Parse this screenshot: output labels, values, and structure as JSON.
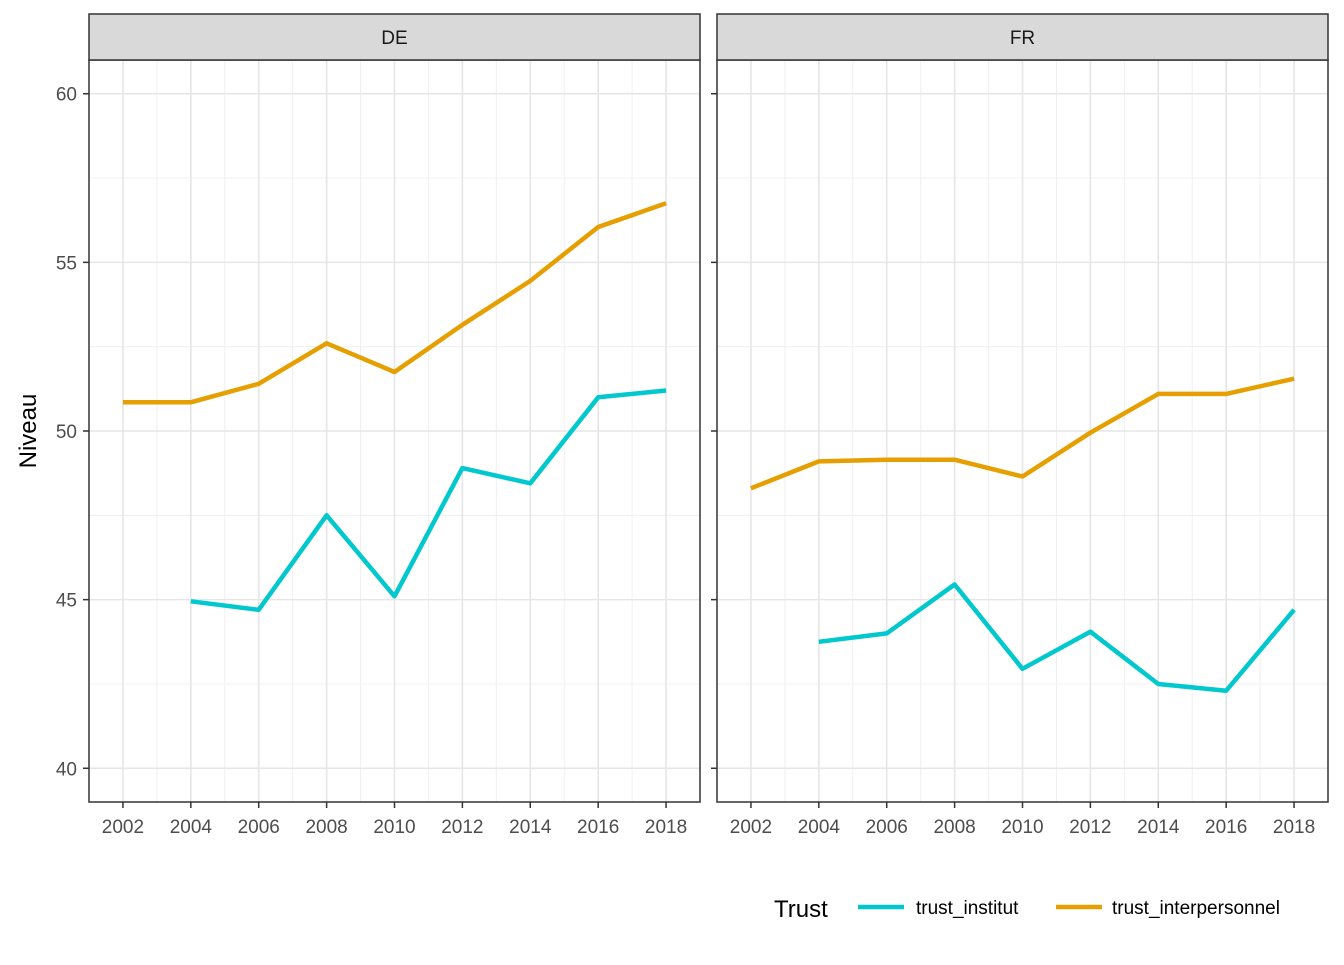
{
  "chart_data": {
    "type": "line",
    "ylabel": "Niveau",
    "ylim": [
      39,
      61
    ],
    "yticks": [
      40,
      45,
      50,
      55,
      60
    ],
    "xlim": [
      2001,
      2019
    ],
    "xticks": [
      2002,
      2004,
      2006,
      2008,
      2010,
      2012,
      2014,
      2016,
      2018
    ],
    "grid": true,
    "legend": {
      "title": "Trust",
      "position": "bottom-right",
      "entries": [
        "trust_institut",
        "trust_interpersonnel"
      ]
    },
    "colors": {
      "trust_institut": "#00c8cd",
      "trust_interpersonnel": "#e69f00"
    },
    "panels": [
      {
        "label": "DE",
        "series": [
          {
            "name": "trust_institut",
            "x": [
              2004,
              2006,
              2008,
              2010,
              2012,
              2014,
              2016,
              2018
            ],
            "y": [
              44.95,
              44.7,
              47.5,
              45.1,
              48.9,
              48.45,
              51.0,
              51.2
            ]
          },
          {
            "name": "trust_interpersonnel",
            "x": [
              2002,
              2004,
              2006,
              2008,
              2010,
              2012,
              2014,
              2016,
              2018
            ],
            "y": [
              50.85,
              50.85,
              51.4,
              52.6,
              51.75,
              53.15,
              54.45,
              56.05,
              56.75
            ]
          }
        ]
      },
      {
        "label": "FR",
        "series": [
          {
            "name": "trust_institut",
            "x": [
              2004,
              2006,
              2008,
              2010,
              2012,
              2014,
              2016,
              2018
            ],
            "y": [
              43.75,
              44.0,
              45.45,
              42.95,
              44.05,
              42.5,
              42.3,
              44.7
            ]
          },
          {
            "name": "trust_interpersonnel",
            "x": [
              2002,
              2004,
              2006,
              2008,
              2010,
              2012,
              2014,
              2016,
              2018
            ],
            "y": [
              48.3,
              49.1,
              49.15,
              49.15,
              48.65,
              49.95,
              51.1,
              51.1,
              51.55
            ]
          }
        ]
      }
    ]
  }
}
